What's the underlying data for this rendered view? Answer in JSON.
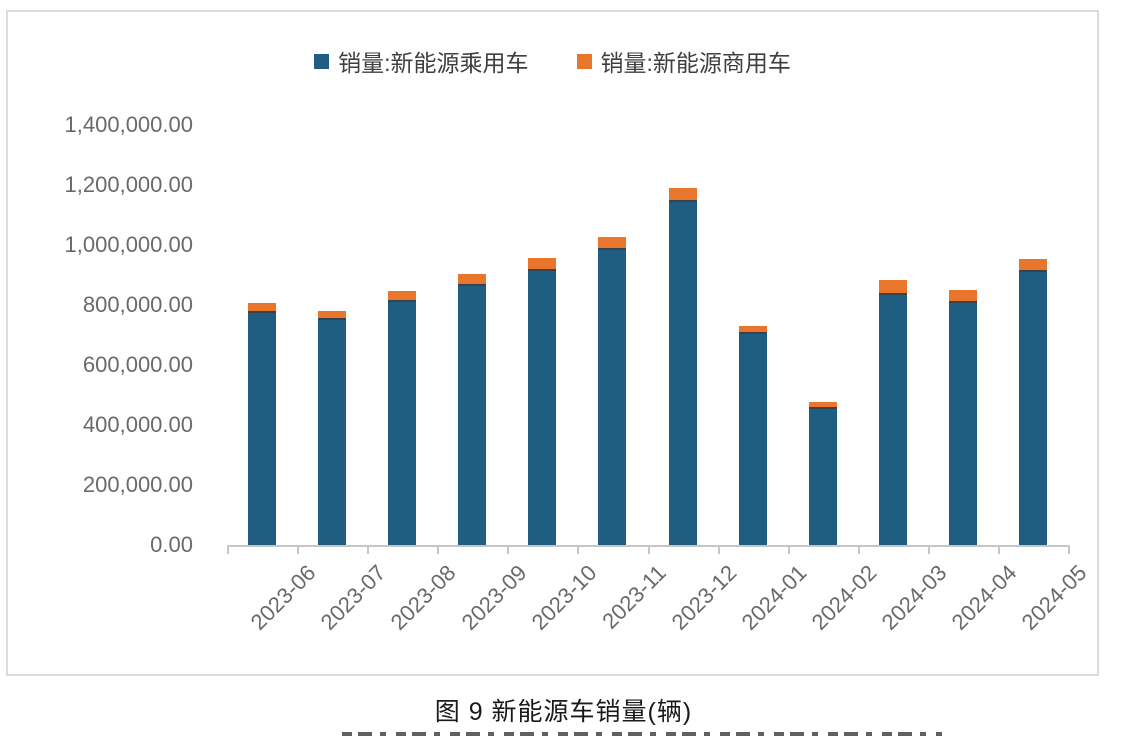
{
  "figure": {
    "caption": "图 9 新能源车销量(辆)"
  },
  "chart_data": {
    "type": "bar",
    "stacked": true,
    "title": "",
    "xlabel": "",
    "ylabel": "",
    "unit": "辆",
    "categories": [
      "2023-06",
      "2023-07",
      "2023-08",
      "2023-09",
      "2023-10",
      "2023-11",
      "2023-12",
      "2024-01",
      "2024-02",
      "2024-03",
      "2024-04",
      "2024-05"
    ],
    "series": [
      {
        "name": "销量:新能源乘用车",
        "color": "#205e81",
        "values": [
          774000,
          750000,
          810000,
          865000,
          915000,
          982000,
          1144000,
          703000,
          452000,
          835000,
          807000,
          910000
        ]
      },
      {
        "name": "销量:新能源商用车",
        "color": "#e8772d",
        "values": [
          32000,
          30000,
          36000,
          39000,
          41000,
          44000,
          47000,
          26000,
          25000,
          48000,
          43000,
          45000
        ]
      }
    ],
    "ylim": [
      0,
      1400000
    ],
    "ytick_interval": 200000,
    "ytick_labels": [
      "0.00",
      "200,000.00",
      "400,000.00",
      "600,000.00",
      "800,000.00",
      "1,000,000.00",
      "1,200,000.00",
      "1,400,000.00"
    ],
    "legend_position": "top",
    "grid": false,
    "axis_color": "#c6c6c6",
    "tick_label_color": "#6a6a6a",
    "legend_text_color": "#3f3f3f"
  }
}
